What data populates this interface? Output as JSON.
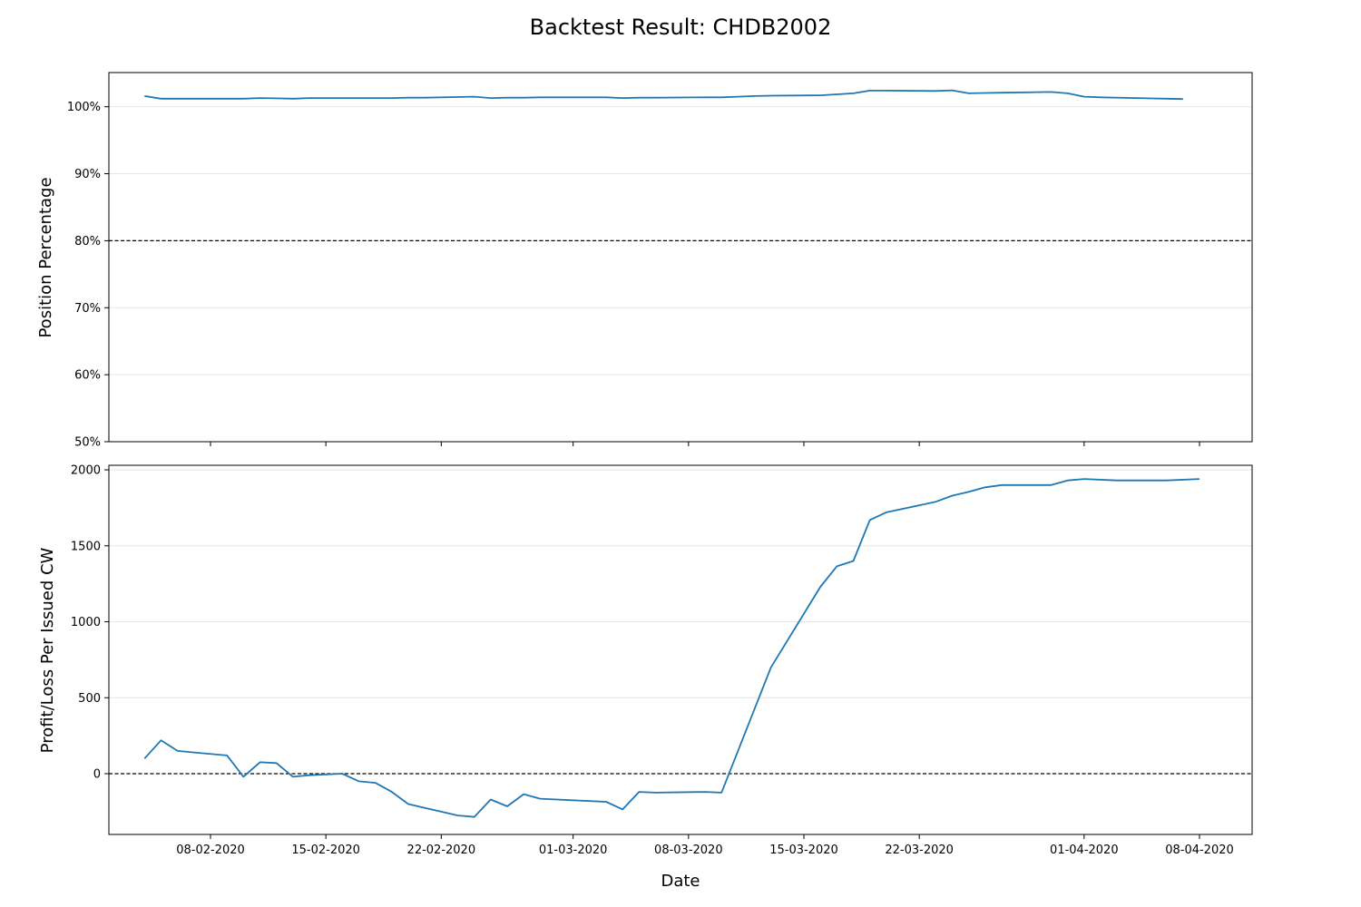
{
  "figure": {
    "title": "Backtest Result: CHDB2002",
    "xlabel": "Date"
  },
  "colors": {
    "series": "#1f77b4",
    "grid": "#e6e6e6",
    "reference": "#000000",
    "axes": "#000000"
  },
  "chart_data": [
    {
      "type": "line",
      "panel": "top",
      "ylabel": "Position Percentage",
      "ylim": [
        50,
        105.1
      ],
      "yticks": [
        50,
        60,
        70,
        80,
        90,
        100
      ],
      "ytick_labels": [
        "50%",
        "60%",
        "70%",
        "80%",
        "90%",
        "100%"
      ],
      "reference_line": 80,
      "grid": true,
      "series": [
        {
          "name": "Position Percentage",
          "x": [
            "2020-02-04",
            "2020-02-05",
            "2020-02-06",
            "2020-02-07",
            "2020-02-10",
            "2020-02-11",
            "2020-02-12",
            "2020-02-13",
            "2020-02-14",
            "2020-02-17",
            "2020-02-18",
            "2020-02-19",
            "2020-02-20",
            "2020-02-21",
            "2020-02-24",
            "2020-02-25",
            "2020-02-26",
            "2020-02-27",
            "2020-02-28",
            "2020-03-02",
            "2020-03-03",
            "2020-03-04",
            "2020-03-05",
            "2020-03-06",
            "2020-03-09",
            "2020-03-10",
            "2020-03-11",
            "2020-03-12",
            "2020-03-13",
            "2020-03-16",
            "2020-03-17",
            "2020-03-18",
            "2020-03-19",
            "2020-03-20",
            "2020-03-23",
            "2020-03-24",
            "2020-03-25",
            "2020-03-26",
            "2020-03-27",
            "2020-03-30",
            "2020-03-31",
            "2020-04-01",
            "2020-04-02",
            "2020-04-06",
            "2020-04-07"
          ],
          "values": [
            101.6,
            101.2,
            101.2,
            101.2,
            101.2,
            101.3,
            101.25,
            101.2,
            101.3,
            101.3,
            101.3,
            101.3,
            101.35,
            101.35,
            101.5,
            101.3,
            101.35,
            101.35,
            101.4,
            101.4,
            101.4,
            101.3,
            101.35,
            101.35,
            101.4,
            101.4,
            101.5,
            101.6,
            101.65,
            101.7,
            101.85,
            102.0,
            102.4,
            102.4,
            102.35,
            102.45,
            102.0,
            102.05,
            102.1,
            102.2,
            102.0,
            101.5,
            101.4,
            101.2,
            101.15
          ]
        }
      ]
    },
    {
      "type": "line",
      "panel": "bottom",
      "ylabel": "Profit/Loss Per Issued CW",
      "ylim": [
        -400,
        2030
      ],
      "yticks": [
        0,
        500,
        1000,
        1500,
        2000
      ],
      "ytick_labels": [
        "0",
        "500",
        "1000",
        "1500",
        "2000"
      ],
      "reference_line": 0,
      "grid": true,
      "series": [
        {
          "name": "Profit/Loss Per Issued CW",
          "x": [
            "2020-02-04",
            "2020-02-05",
            "2020-02-06",
            "2020-02-07",
            "2020-02-09",
            "2020-02-10",
            "2020-02-11",
            "2020-02-12",
            "2020-02-13",
            "2020-02-14",
            "2020-02-16",
            "2020-02-17",
            "2020-02-18",
            "2020-02-19",
            "2020-02-20",
            "2020-02-21",
            "2020-02-22",
            "2020-02-23",
            "2020-02-24",
            "2020-02-25",
            "2020-02-26",
            "2020-02-27",
            "2020-02-28",
            "2020-03-02",
            "2020-03-03",
            "2020-03-04",
            "2020-03-05",
            "2020-03-06",
            "2020-03-09",
            "2020-03-10",
            "2020-03-13",
            "2020-03-16",
            "2020-03-17",
            "2020-03-18",
            "2020-03-19",
            "2020-03-20",
            "2020-03-23",
            "2020-03-24",
            "2020-03-25",
            "2020-03-26",
            "2020-03-27",
            "2020-03-30",
            "2020-03-31",
            "2020-04-01",
            "2020-04-03",
            "2020-04-06",
            "2020-04-08"
          ],
          "values": [
            100,
            220,
            150,
            140,
            120,
            -20,
            75,
            70,
            -20,
            -10,
            0,
            -50,
            -60,
            -120,
            -200,
            -225,
            -250,
            -275,
            -285,
            -170,
            -215,
            -135,
            -165,
            -180,
            -185,
            -235,
            -120,
            -125,
            -120,
            -125,
            700,
            1230,
            1365,
            1400,
            1670,
            1720,
            1790,
            1830,
            1855,
            1885,
            1900,
            1900,
            1930,
            1940,
            1930,
            1930,
            1940
          ]
        }
      ]
    }
  ],
  "xaxis": {
    "ticks": [
      "2020-02-08",
      "2020-02-15",
      "2020-02-22",
      "2020-03-01",
      "2020-03-08",
      "2020-03-15",
      "2020-03-22",
      "2020-04-01",
      "2020-04-08"
    ],
    "tick_labels": [
      "08-02-2020",
      "15-02-2020",
      "22-02-2020",
      "01-03-2020",
      "08-03-2020",
      "15-03-2020",
      "22-03-2020",
      "01-04-2020",
      "08-04-2020"
    ]
  }
}
